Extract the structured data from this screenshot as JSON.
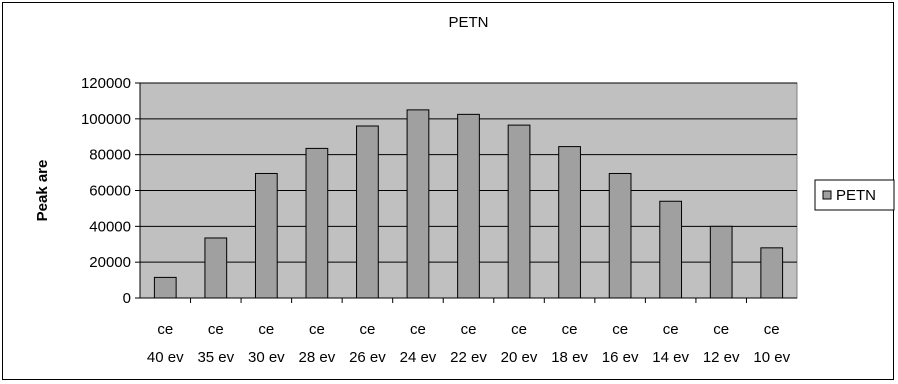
{
  "chart_data": {
    "type": "bar",
    "title": "PETN",
    "xlabel": "",
    "ylabel": "Peak are",
    "ylim": [
      0,
      120000
    ],
    "yticks": [
      0,
      20000,
      40000,
      60000,
      80000,
      100000,
      120000
    ],
    "grid": true,
    "legend_position": "right",
    "categories": [
      {
        "line1": "ce",
        "line2": "40 ev"
      },
      {
        "line1": "ce",
        "line2": "35 ev"
      },
      {
        "line1": "ce",
        "line2": "30 ev"
      },
      {
        "line1": "ce",
        "line2": "28 ev"
      },
      {
        "line1": "ce",
        "line2": "26 ev"
      },
      {
        "line1": "ce",
        "line2": "24 ev"
      },
      {
        "line1": "ce",
        "line2": "22 ev"
      },
      {
        "line1": "ce",
        "line2": "20 ev"
      },
      {
        "line1": "ce",
        "line2": "18 ev"
      },
      {
        "line1": "ce",
        "line2": "16 ev"
      },
      {
        "line1": "ce",
        "line2": "14 ev"
      },
      {
        "line1": "ce",
        "line2": "12 ev"
      },
      {
        "line1": "ce",
        "line2": "10 ev"
      }
    ],
    "series": [
      {
        "name": "PETN",
        "color": "#a0a0a0",
        "values": [
          11500,
          33500,
          69500,
          83500,
          96000,
          105000,
          102500,
          96500,
          84500,
          69500,
          54000,
          40000,
          28000
        ]
      }
    ],
    "plot_background": "#c0c0c0"
  }
}
